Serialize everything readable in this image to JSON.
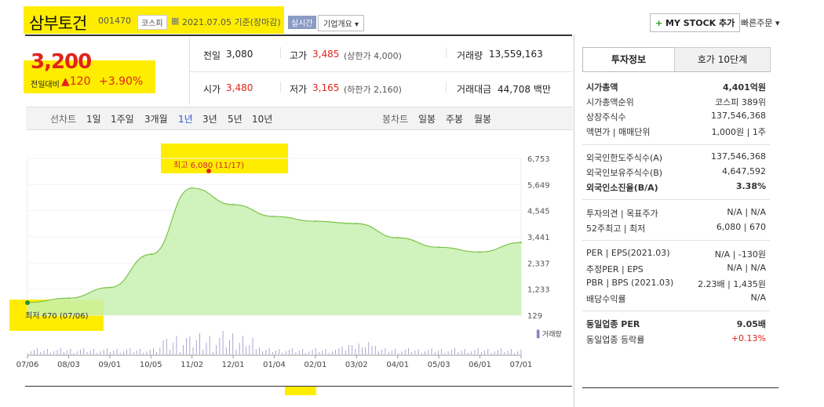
{
  "header": {
    "stock_name": "삼부토건",
    "stock_code": "001470",
    "market_tag": "코스피",
    "date_basis": "2021.07.05  기준(장마감)",
    "realtime_label": "실시간",
    "company_info_label": "기업개요 ▾",
    "mystock_label": "MY STOCK 추가",
    "quick_order_label": "빠른주문 ▾"
  },
  "price": {
    "current": "3,200",
    "change_label": "전일대비",
    "change_value": "▲120",
    "change_pct": "+3.90%"
  },
  "quote": {
    "prev_close_label": "전일",
    "prev_close": "3,080",
    "high_label": "고가",
    "high": "3,485",
    "upper_limit": "(상한가 4,000)",
    "volume_label": "거래량",
    "volume": "13,559,163",
    "open_label": "시가",
    "open": "3,480",
    "low_label": "저가",
    "low": "3,165",
    "lower_limit": "(하한가 2,160)",
    "amount_label": "거래대금",
    "amount": "44,708 백만"
  },
  "chart_tabs": {
    "line_label": "선차트",
    "periods": [
      "1일",
      "1주일",
      "3개월",
      "1년",
      "3년",
      "5년",
      "10년"
    ],
    "active_period": "1년",
    "candle_label": "봉차트",
    "candle_periods": [
      "일봉",
      "주봉",
      "월봉"
    ]
  },
  "chart_data": {
    "type": "area",
    "x": [
      "07/06",
      "08/03",
      "09/01",
      "10/05",
      "11/02",
      "12/01",
      "01/04",
      "02/01",
      "03/02",
      "04/01",
      "05/03",
      "06/01",
      "07/01"
    ],
    "values": [
      670,
      850,
      1300,
      2700,
      5500,
      4800,
      4300,
      4100,
      4000,
      3400,
      3000,
      2800,
      3200
    ],
    "y_ticks": [
      "6,753",
      "5,649",
      "4,545",
      "3,441",
      "2,337",
      "1,233",
      "129"
    ],
    "ylim": [
      129,
      6753
    ],
    "max_label": "최고 6,080 (11/17)",
    "min_label": "최저 670 (07/06)",
    "volume_label": "거래량",
    "colors": {
      "fill": "#c8f0b0",
      "line": "#7cc44a"
    }
  },
  "invest": {
    "tab_active": "투자정보",
    "tab_other": "호가 10단계",
    "rows": [
      {
        "label": "시가총액",
        "value": "4,401억원"
      },
      {
        "label": "시가총액순위",
        "value": "코스피 389위"
      },
      {
        "label": "상장주식수",
        "value": "137,546,368"
      },
      {
        "label": "액면가 | 매매단위",
        "value": "1,000원 | 1주"
      },
      {
        "label": "외국인한도주식수(A)",
        "value": "137,546,368"
      },
      {
        "label": "외국인보유주식수(B)",
        "value": "4,647,592"
      },
      {
        "label": "외국인소진율(B/A)",
        "value": "3.38%"
      },
      {
        "label": "투자의견 | 목표주가",
        "value": "N/A | N/A"
      },
      {
        "label": "52주최고 | 최저",
        "value": "6,080 | 670"
      },
      {
        "label": "PER | EPS(2021.03)",
        "value": "N/A | -130원"
      },
      {
        "label": "추정PER | EPS",
        "value": "N/A | N/A"
      },
      {
        "label": "PBR | BPS (2021.03)",
        "value": "2.23배 | 1,435원"
      },
      {
        "label": "배당수익률",
        "value": "N/A"
      },
      {
        "label": "동일업종 PER",
        "value": "9.05배"
      },
      {
        "label": "동일업종 등락률",
        "value": "+0.13%"
      }
    ]
  }
}
